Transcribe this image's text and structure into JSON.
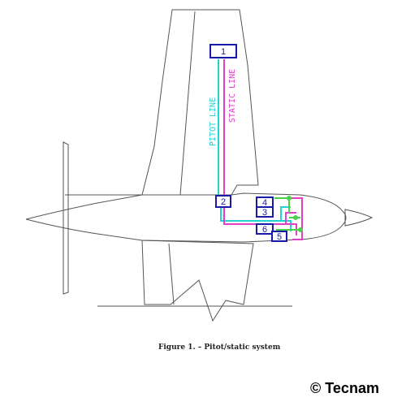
{
  "diagram": {
    "components": [
      {
        "id": "1",
        "label": "1"
      },
      {
        "id": "2",
        "label": "2"
      },
      {
        "id": "3",
        "label": "3"
      },
      {
        "id": "4",
        "label": "4"
      },
      {
        "id": "5",
        "label": "5"
      },
      {
        "id": "6",
        "label": "6"
      }
    ],
    "lines": {
      "pitot": {
        "label": "PITOT LINE",
        "color": "#22d3d3"
      },
      "static": {
        "label": "STATIC LINE",
        "color": "#e040c8"
      },
      "junction_color": "#4ad04a"
    },
    "box_color": "#1a1aa8",
    "outline_color": "#555555"
  },
  "caption": "Figure 1. – Pitot/static system",
  "copyright": "© Tecnam"
}
